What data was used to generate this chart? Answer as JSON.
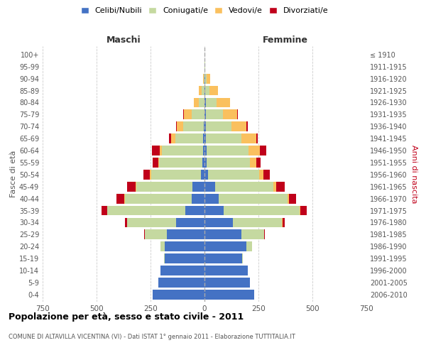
{
  "age_groups": [
    "0-4",
    "5-9",
    "10-14",
    "15-19",
    "20-24",
    "25-29",
    "30-34",
    "35-39",
    "40-44",
    "45-49",
    "50-54",
    "55-59",
    "60-64",
    "65-69",
    "70-74",
    "75-79",
    "80-84",
    "85-89",
    "90-94",
    "95-99",
    "100+"
  ],
  "birth_years": [
    "2006-2010",
    "2001-2005",
    "1996-2000",
    "1991-1995",
    "1986-1990",
    "1981-1985",
    "1976-1980",
    "1971-1975",
    "1966-1970",
    "1961-1965",
    "1956-1960",
    "1951-1955",
    "1946-1950",
    "1941-1945",
    "1936-1940",
    "1931-1935",
    "1926-1930",
    "1921-1925",
    "1916-1920",
    "1911-1915",
    "≤ 1910"
  ],
  "male_celibi": [
    240,
    215,
    205,
    185,
    185,
    175,
    130,
    90,
    60,
    55,
    18,
    10,
    8,
    5,
    3,
    0,
    0,
    0,
    0,
    0,
    0
  ],
  "male_coniugati": [
    0,
    0,
    0,
    2,
    20,
    100,
    230,
    360,
    310,
    260,
    230,
    200,
    190,
    130,
    95,
    60,
    25,
    12,
    3,
    0,
    0
  ],
  "male_vedovi": [
    0,
    0,
    0,
    0,
    0,
    0,
    0,
    2,
    2,
    3,
    5,
    5,
    10,
    20,
    30,
    35,
    25,
    15,
    5,
    1,
    0
  ],
  "male_divorziati": [
    0,
    0,
    0,
    0,
    0,
    3,
    10,
    25,
    35,
    40,
    30,
    25,
    35,
    10,
    5,
    5,
    0,
    0,
    0,
    0,
    0
  ],
  "female_nubili": [
    230,
    210,
    200,
    175,
    195,
    170,
    130,
    90,
    65,
    50,
    18,
    10,
    10,
    5,
    5,
    5,
    5,
    3,
    2,
    0,
    0
  ],
  "female_coniugate": [
    0,
    0,
    0,
    3,
    25,
    105,
    230,
    350,
    320,
    270,
    235,
    200,
    195,
    165,
    120,
    80,
    50,
    20,
    8,
    2,
    0
  ],
  "female_vedove": [
    0,
    0,
    0,
    0,
    0,
    0,
    2,
    3,
    5,
    12,
    20,
    30,
    50,
    70,
    70,
    65,
    65,
    40,
    15,
    2,
    1
  ],
  "female_divorziate": [
    0,
    0,
    0,
    0,
    0,
    3,
    10,
    30,
    35,
    40,
    30,
    20,
    30,
    8,
    5,
    5,
    0,
    0,
    0,
    0,
    0
  ],
  "color_celibi": "#4472C4",
  "color_coniugati": "#C5D9A0",
  "color_vedovi": "#FAC05E",
  "color_divorziati": "#C0001A",
  "title_main": "Popolazione per età, sesso e stato civile - 2011",
  "title_sub": "COMUNE DI ALTAVILLA VICENTINA (VI) - Dati ISTAT 1° gennaio 2011 - Elaborazione TUTTITALIA.IT",
  "xlabel_left": "Maschi",
  "xlabel_right": "Femmine",
  "ylabel_left": "Fasce di età",
  "ylabel_right": "Anni di nascita",
  "xlim": 750,
  "bg_color": "#FFFFFF",
  "grid_color": "#CCCCCC"
}
